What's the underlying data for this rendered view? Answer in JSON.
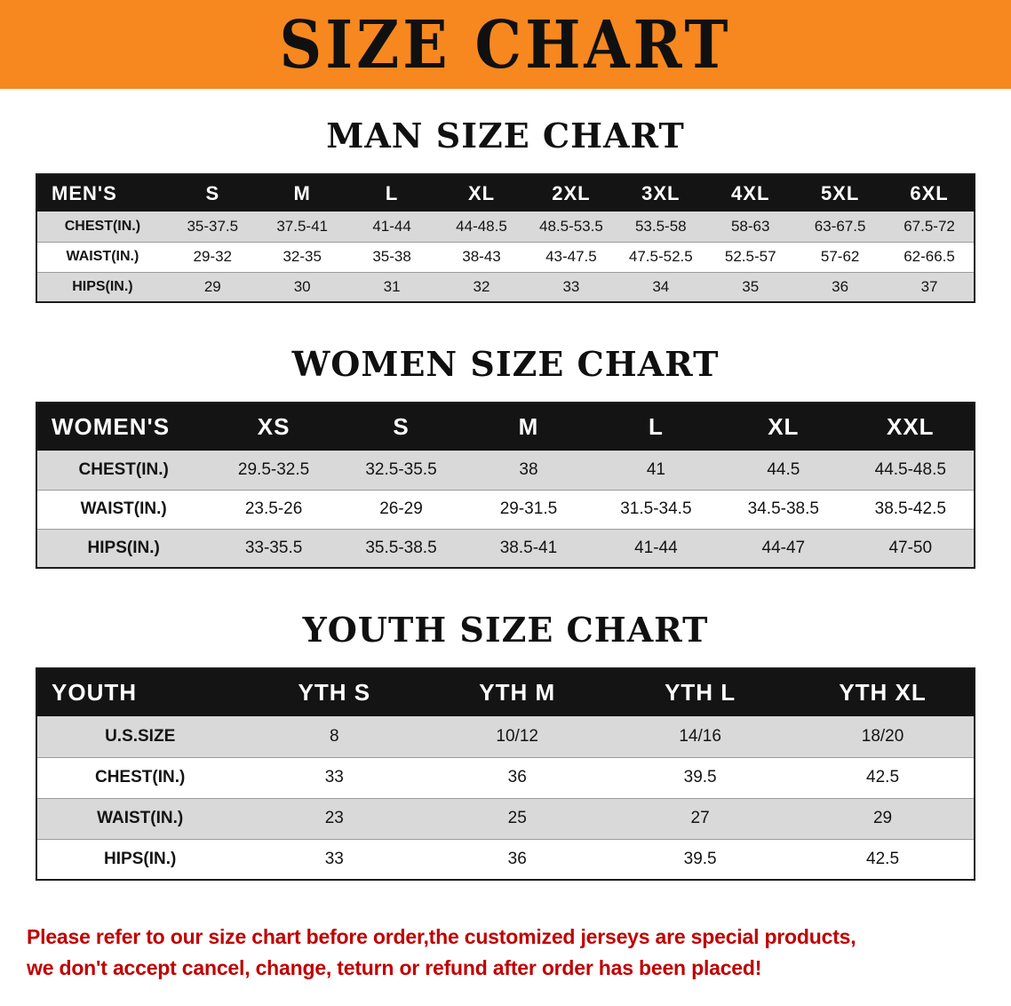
{
  "banner": {
    "title": "SIZE CHART"
  },
  "colors": {
    "banner_bg": "#F6881F",
    "header_bg": "#141414",
    "stripe": "#D9D9D9",
    "disclaimer": "#C00000"
  },
  "sections": [
    {
      "id": "men",
      "heading": "MAN SIZE CHART",
      "table": {
        "header": [
          "MEN'S",
          "S",
          "M",
          "L",
          "XL",
          "2XL",
          "3XL",
          "4XL",
          "5XL",
          "6XL"
        ],
        "rows": [
          [
            "CHEST(IN.)",
            "35-37.5",
            "37.5-41",
            "41-44",
            "44-48.5",
            "48.5-53.5",
            "53.5-58",
            "58-63",
            "63-67.5",
            "67.5-72"
          ],
          [
            "WAIST(IN.)",
            "29-32",
            "32-35",
            "35-38",
            "38-43",
            "43-47.5",
            "47.5-52.5",
            "52.5-57",
            "57-62",
            "62-66.5"
          ],
          [
            "HIPS(IN.)",
            "29",
            "30",
            "31",
            "32",
            "33",
            "34",
            "35",
            "36",
            "37"
          ]
        ]
      }
    },
    {
      "id": "women",
      "heading": "WOMEN SIZE CHART",
      "table": {
        "header": [
          "WOMEN'S",
          "XS",
          "S",
          "M",
          "L",
          "XL",
          "XXL"
        ],
        "rows": [
          [
            "CHEST(IN.)",
            "29.5-32.5",
            "32.5-35.5",
            "38",
            "41",
            "44.5",
            "44.5-48.5"
          ],
          [
            "WAIST(IN.)",
            "23.5-26",
            "26-29",
            "29-31.5",
            "31.5-34.5",
            "34.5-38.5",
            "38.5-42.5"
          ],
          [
            "HIPS(IN.)",
            "33-35.5",
            "35.5-38.5",
            "38.5-41",
            "41-44",
            "44-47",
            "47-50"
          ]
        ]
      }
    },
    {
      "id": "youth",
      "heading": "YOUTH SIZE CHART",
      "table": {
        "header": [
          "YOUTH",
          "YTH S",
          "YTH M",
          "YTH L",
          "YTH XL"
        ],
        "rows": [
          [
            "U.S.SIZE",
            "8",
            "10/12",
            "14/16",
            "18/20"
          ],
          [
            "CHEST(IN.)",
            "33",
            "36",
            "39.5",
            "42.5"
          ],
          [
            "WAIST(IN.)",
            "23",
            "25",
            "27",
            "29"
          ],
          [
            "HIPS(IN.)",
            "33",
            "36",
            "39.5",
            "42.5"
          ]
        ]
      }
    }
  ],
  "disclaimer": {
    "line1": "Please refer to our size chart before order,the customized jerseys are special products,",
    "line2": "we don't accept cancel, change, teturn or refund after order has been placed!"
  }
}
